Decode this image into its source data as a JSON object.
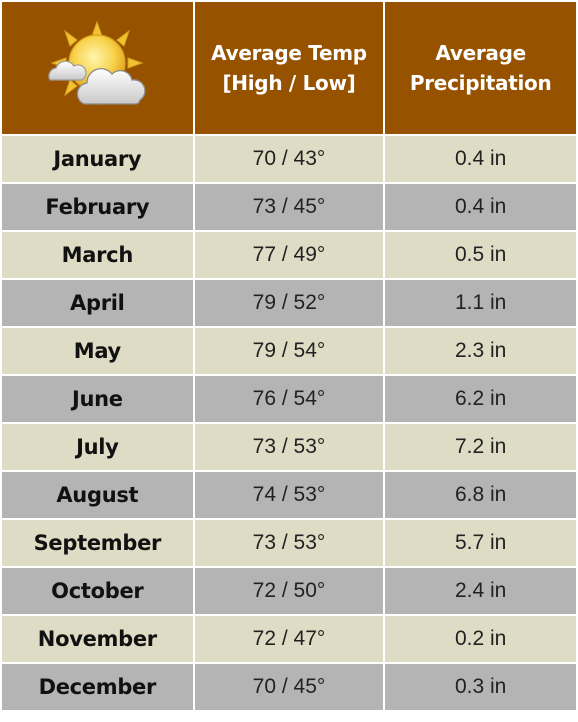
{
  "header": {
    "icon": "sun-behind-cloud-icon",
    "temp_line1": "Average Temp",
    "temp_line2": "[High / Low]",
    "precip_line1": "Average",
    "precip_line2": "Precipitation"
  },
  "colors": {
    "header_bg": "#975200",
    "row_light": "#dfdcc5",
    "row_dark": "#b4b4b4"
  },
  "rows": [
    {
      "month": "January",
      "temp": "70 / 43°",
      "precip": "0.4 in"
    },
    {
      "month": "February",
      "temp": "73 / 45°",
      "precip": "0.4 in"
    },
    {
      "month": "March",
      "temp": "77 / 49°",
      "precip": "0.5 in"
    },
    {
      "month": "April",
      "temp": "79 / 52°",
      "precip": "1.1 in"
    },
    {
      "month": "May",
      "temp": "79 / 54°",
      "precip": "2.3 in"
    },
    {
      "month": "June",
      "temp": "76 / 54°",
      "precip": "6.2 in"
    },
    {
      "month": "July",
      "temp": "73 / 53°",
      "precip": "7.2 in"
    },
    {
      "month": "August",
      "temp": "74 / 53°",
      "precip": "6.8 in"
    },
    {
      "month": "September",
      "temp": "73 / 53°",
      "precip": "5.7 in"
    },
    {
      "month": "October",
      "temp": "72 / 50°",
      "precip": "2.4 in"
    },
    {
      "month": "November",
      "temp": "72 / 47°",
      "precip": "0.2 in"
    },
    {
      "month": "December",
      "temp": "70 / 45°",
      "precip": "0.3 in"
    }
  ]
}
